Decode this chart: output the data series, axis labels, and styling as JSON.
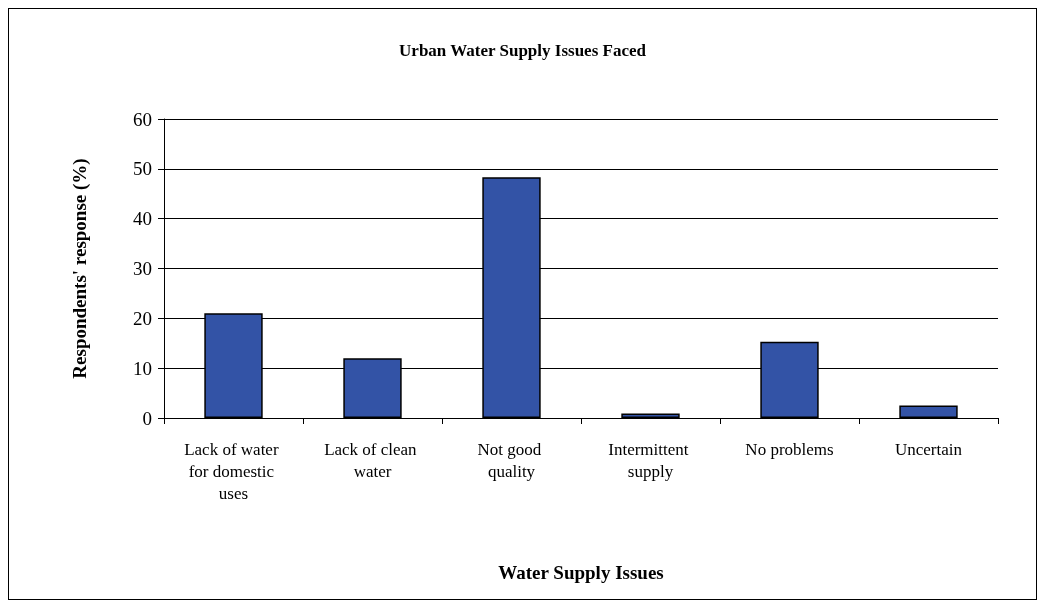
{
  "chart_data": {
    "type": "bar",
    "title": "Urban Water Supply Issues Faced",
    "xlabel": "Water Supply Issues",
    "ylabel": "Respondents' response (%)",
    "categories": [
      "Lack of water for domestic uses",
      "Lack of clean water",
      "Not good quality",
      "Intermittent supply",
      "No problems",
      "Uncertain"
    ],
    "values": [
      21,
      12,
      48.3,
      0.9,
      15.3,
      2.5
    ],
    "color": "#3353a6",
    "ylim": [
      0,
      60
    ],
    "yticks": [
      0,
      10,
      20,
      30,
      40,
      50,
      60
    ],
    "grid": "y"
  }
}
